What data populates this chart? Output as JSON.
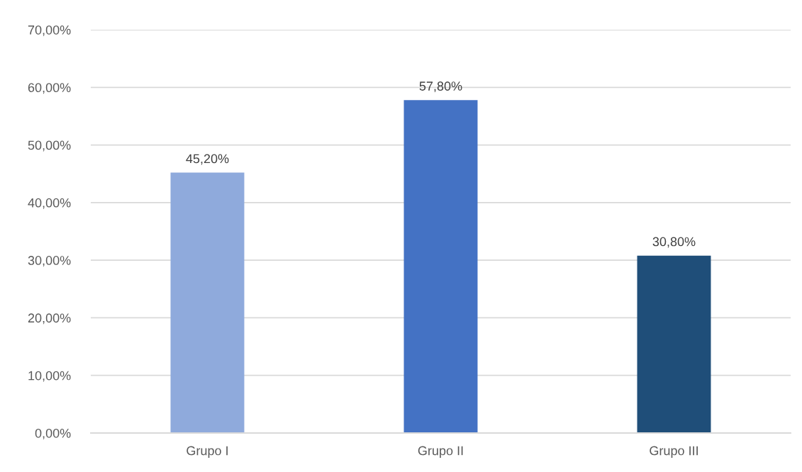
{
  "chart_data": {
    "type": "bar",
    "categories": [
      "Grupo I",
      "Grupo II",
      "Grupo III"
    ],
    "values": [
      45.2,
      57.8,
      30.8
    ],
    "colors": [
      "#8faadc",
      "#4472c4",
      "#1f4e79"
    ],
    "value_labels": [
      "45,20%",
      "57,80%",
      "30,80%"
    ],
    "ylim": [
      0,
      70
    ],
    "yticks": [
      {
        "value": 0,
        "label": "0,00%"
      },
      {
        "value": 10,
        "label": "10,00%"
      },
      {
        "value": 20,
        "label": "20,00%"
      },
      {
        "value": 30,
        "label": "30,00%"
      },
      {
        "value": 40,
        "label": "40,00%"
      },
      {
        "value": 50,
        "label": "50,00%"
      },
      {
        "value": 60,
        "label": "60,00%"
      },
      {
        "value": 70,
        "label": "70,00%"
      }
    ],
    "grid": "y"
  }
}
